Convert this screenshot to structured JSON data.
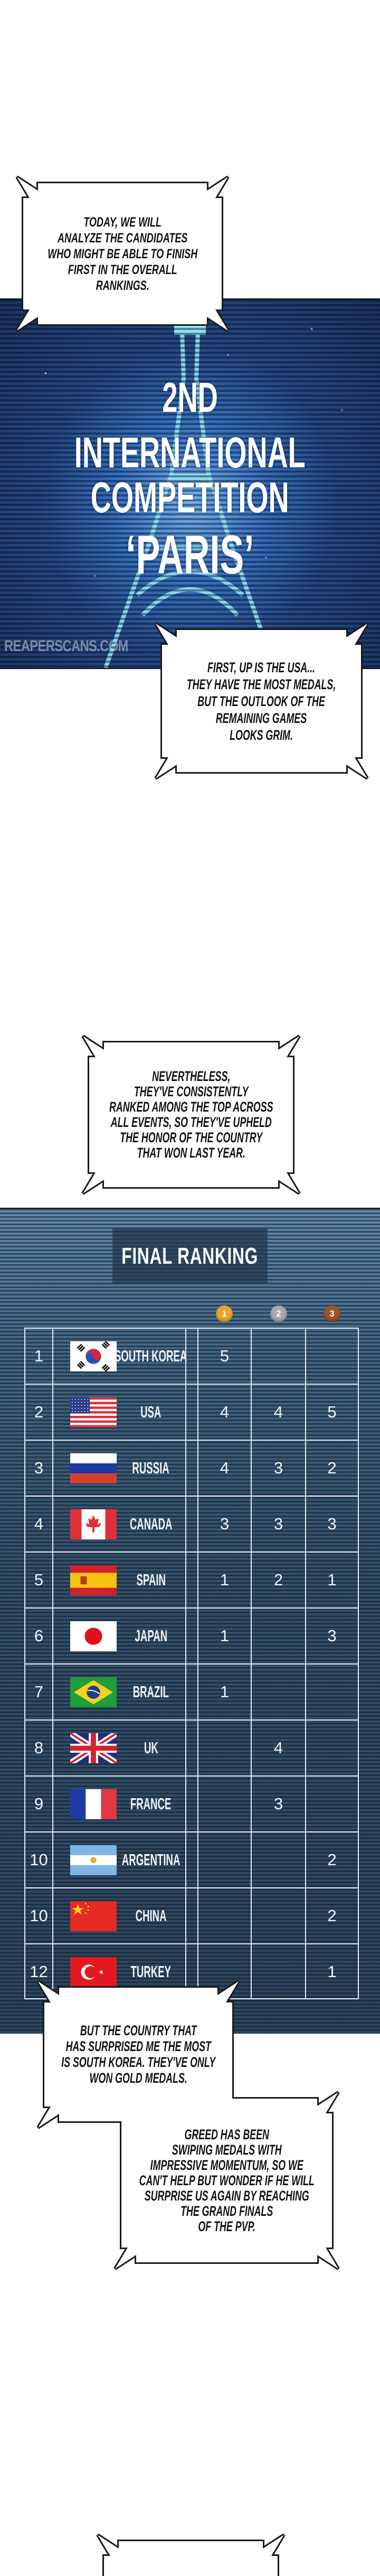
{
  "intro_panel": {
    "bubble_top": [
      "TODAY, WE WILL",
      "ANALYZE THE CANDIDATES",
      "WHO MIGHT BE ABLE TO FINISH",
      "FIRST IN THE OVERALL",
      "RANKINGS."
    ],
    "title_lines": [
      "2ND",
      "INTERNATIONAL",
      "COMPETITION",
      "‘PARIS’"
    ],
    "watermark": "REAPERSCANS.COM",
    "bubble_bottom": [
      "FIRST, UP IS THE USA...",
      "THEY HAVE THE MOST MEDALS,",
      "BUT THE OUTLOOK OF THE",
      "REMAINING GAMES",
      "LOOKS GRIM."
    ]
  },
  "bubble_middle": [
    "NEVERTHELESS,",
    "THEY'VE CONSISTENTLY",
    "RANKED AMONG THE TOP ACROSS",
    "ALL EVENTS, SO THEY'VE UPHELD",
    "THE HONOR OF THE COUNTRY",
    "THAT WON LAST YEAR."
  ],
  "ranking": {
    "title": "FINAL RANKING",
    "medals": [
      {
        "label": "1",
        "color": "#e9a62b",
        "icon": "gold-medal-icon"
      },
      {
        "label": "2",
        "color": "#a7a9ab",
        "icon": "silver-medal-icon"
      },
      {
        "label": "3",
        "color": "#9a5327",
        "icon": "bronze-medal-icon"
      }
    ],
    "rows": [
      {
        "rank": "1",
        "country": "SOUTH KOREA",
        "flag": "kr",
        "gold": "5",
        "silver": "",
        "bronze": ""
      },
      {
        "rank": "2",
        "country": "USA",
        "flag": "us",
        "gold": "4",
        "silver": "4",
        "bronze": "5"
      },
      {
        "rank": "3",
        "country": "RUSSIA",
        "flag": "ru",
        "gold": "4",
        "silver": "3",
        "bronze": "2"
      },
      {
        "rank": "4",
        "country": "CANADA",
        "flag": "ca",
        "gold": "3",
        "silver": "3",
        "bronze": "3"
      },
      {
        "rank": "5",
        "country": "SPAIN",
        "flag": "es",
        "gold": "1",
        "silver": "2",
        "bronze": "1"
      },
      {
        "rank": "6",
        "country": "JAPAN",
        "flag": "jp",
        "gold": "1",
        "silver": "",
        "bronze": "3"
      },
      {
        "rank": "7",
        "country": "BRAZIL",
        "flag": "br",
        "gold": "1",
        "silver": "",
        "bronze": ""
      },
      {
        "rank": "8",
        "country": "UK",
        "flag": "gb",
        "gold": "",
        "silver": "4",
        "bronze": ""
      },
      {
        "rank": "9",
        "country": "FRANCE",
        "flag": "fr",
        "gold": "",
        "silver": "3",
        "bronze": ""
      },
      {
        "rank": "10",
        "country": "ARGENTINA",
        "flag": "ar",
        "gold": "",
        "silver": "",
        "bronze": "2"
      },
      {
        "rank": "10",
        "country": "CHINA",
        "flag": "cn",
        "gold": "",
        "silver": "",
        "bronze": "2"
      },
      {
        "rank": "12",
        "country": "TURKEY",
        "flag": "tr",
        "gold": "",
        "silver": "",
        "bronze": "1"
      }
    ]
  },
  "bubble_korea": [
    "BUT THE COUNTRY THAT",
    "HAS SURPRISED ME THE MOST",
    "IS SOUTH KOREA. THEY'VE ONLY",
    "WON GOLD MEDALS."
  ],
  "bubble_greed": [
    "GREED HAS BEEN",
    "SWIPING MEDALS WITH",
    "IMPRESSIVE MOMENTUM, SO WE",
    "CAN'T HELP BUT WONDER IF HE WILL",
    "SURPRISE US AGAIN BY REACHING",
    "THE GRAND FINALS",
    "OF THE PVP."
  ]
}
